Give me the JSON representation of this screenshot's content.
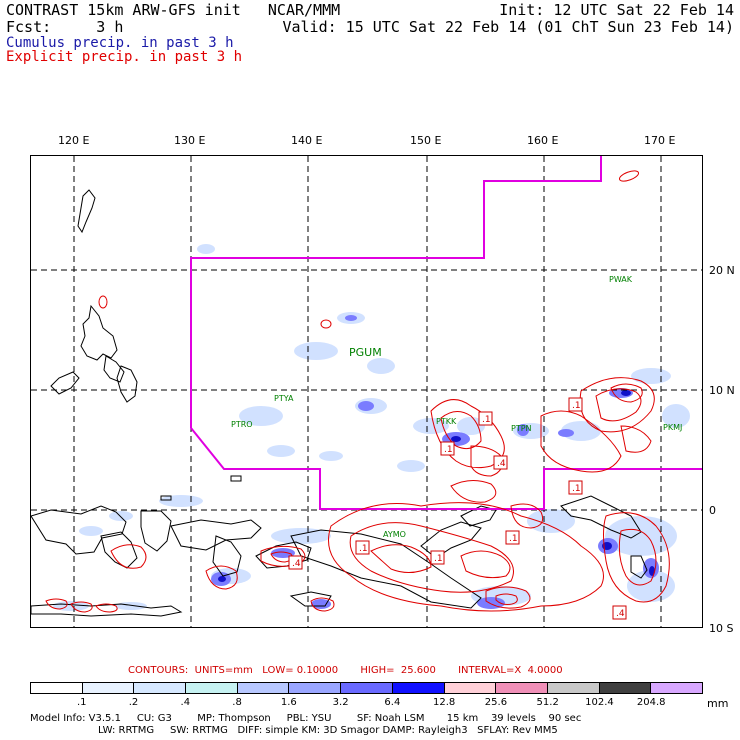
{
  "header": {
    "left_line1": "CONTRAST 15km ARW-GFS init   NCAR/MMM",
    "left_line2": "Fcst:     3 h",
    "right_line1": "Init: 12 UTC Sat 22 Feb 14",
    "right_line2": "Valid: 15 UTC Sat 22 Feb 14 (01 ChT Sun 23 Feb 14)",
    "legend_cumulus": "Cumulus precip. in past 3 h",
    "legend_explicit": "Explicit precip. in past 3 h",
    "cumulus_color": "#1a1aa8",
    "explicit_color": "#e00000"
  },
  "map": {
    "lon_labels": [
      "120 E",
      "130 E",
      "140 E",
      "150 E",
      "160 E",
      "170 E"
    ],
    "lat_labels": [
      "20 N",
      "10 N",
      "0",
      "10 S"
    ],
    "station_labels": [
      "PWAK",
      "PGUM",
      "PTYA",
      "PTRO",
      "PTKK",
      "PTPN",
      "PKMJ",
      "AYMO"
    ],
    "contour_labels": [
      ".1",
      ".1",
      ".1",
      ".1",
      ".1",
      ".1",
      ".1",
      ".4",
      ".4",
      ".4"
    ],
    "boundary_color": "#e000e0",
    "station_color": "#008000"
  },
  "contours_info": "CONTOURS:  UNITS=mm   LOW= 0.10000       HIGH=  25.600       INTERVAL=X  4.0000",
  "colorbar": {
    "ticks": [
      ".1",
      ".2",
      ".4",
      ".8",
      "1.6",
      "3.2",
      "6.4",
      "12.8",
      "25.6",
      "51.2",
      "102.4",
      "204.8"
    ],
    "colors": [
      "#ffffff",
      "#e8f2ff",
      "#d6e8ff",
      "#c6f2f2",
      "#b8c8ff",
      "#9aa6ff",
      "#6a6aff",
      "#1010ff",
      "#ffd0d8",
      "#f090b8",
      "#c8c8c8",
      "#404040",
      "#d8a8ff"
    ],
    "unit": "mm"
  },
  "model_info": {
    "line1": "Model Info: V3.5.1     CU: G3        MP: Thompson     PBL: YSU        SF: Noah LSM       15 km    39 levels    90 sec",
    "line2": "LW: RRTMG     SW: RRTMG   DIFF: simple KM: 3D Smagor DAMP: Rayleigh3   SFLAY: Rev MM5"
  }
}
